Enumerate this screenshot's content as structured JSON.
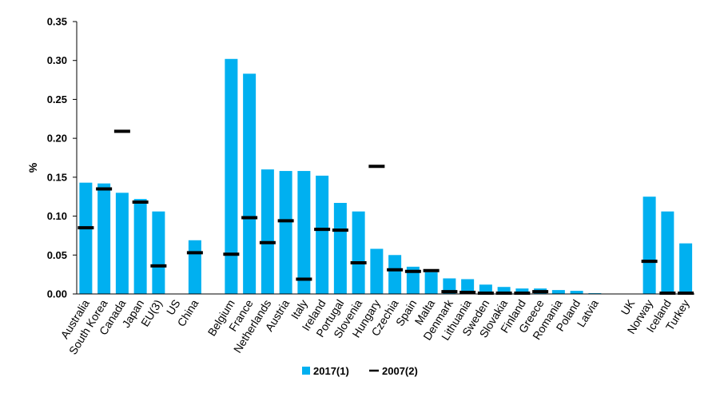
{
  "chart_data": {
    "type": "bar",
    "title": "",
    "xlabel": "",
    "ylabel": "%",
    "ylim": [
      0,
      0.35
    ],
    "yticks": [
      "0.00",
      "0.05",
      "0.10",
      "0.15",
      "0.20",
      "0.25",
      "0.30",
      "0.35"
    ],
    "grid": false,
    "legend_position": "bottom",
    "categories": [
      "Australia",
      "South Korea",
      "Canada",
      "Japan",
      "EU(3)",
      "US",
      "China",
      "",
      "Belgium",
      "France",
      "Netherlands",
      "Austria",
      "Italy",
      "Ireland",
      "Portugal",
      "Slovenia",
      "Hungary",
      "Czechia",
      "Spain",
      "Malta",
      "Denmark",
      "Lithuania",
      "Sweden",
      "Slovakia",
      "Finland",
      "Greece",
      "Romania",
      "Poland",
      "Latvia",
      "",
      "UK",
      "Norway",
      "Iceland",
      "Turkey"
    ],
    "series": [
      {
        "name": "2017(1)",
        "mark": "bar",
        "color": "#00b0f0",
        "values": [
          0.143,
          0.142,
          0.13,
          0.122,
          0.106,
          null,
          0.069,
          null,
          0.302,
          0.283,
          0.16,
          0.158,
          0.158,
          0.152,
          0.117,
          0.106,
          0.058,
          0.05,
          0.035,
          0.028,
          0.02,
          0.019,
          0.012,
          0.009,
          0.007,
          0.007,
          0.005,
          0.004,
          0.001,
          null,
          null,
          0.125,
          0.106,
          0.065
        ]
      },
      {
        "name": "2007(2)",
        "mark": "dash",
        "color": "#000000",
        "values": [
          0.085,
          0.135,
          0.209,
          0.118,
          0.036,
          null,
          0.053,
          null,
          0.051,
          0.098,
          0.066,
          0.094,
          0.019,
          0.083,
          0.082,
          0.04,
          0.164,
          0.031,
          0.029,
          0.03,
          0.003,
          0.002,
          0.001,
          0.001,
          0.001,
          0.003,
          null,
          null,
          null,
          null,
          null,
          0.042,
          0.001,
          0.001
        ]
      }
    ]
  }
}
